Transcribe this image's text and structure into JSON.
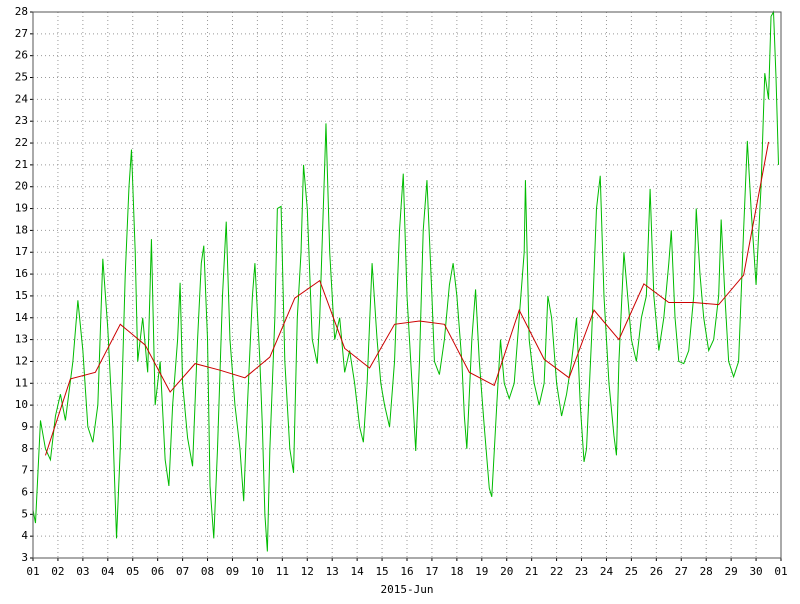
{
  "chart_data": {
    "type": "line",
    "xlabel": "2015-Jun",
    "grid": true,
    "xlim": [
      1,
      31
    ],
    "ylim": [
      3,
      28
    ],
    "xticks": [
      {
        "value": 1,
        "label": "01"
      },
      {
        "value": 2,
        "label": "02"
      },
      {
        "value": 3,
        "label": "03"
      },
      {
        "value": 4,
        "label": "04"
      },
      {
        "value": 5,
        "label": "05"
      },
      {
        "value": 6,
        "label": "06"
      },
      {
        "value": 7,
        "label": "07"
      },
      {
        "value": 8,
        "label": "08"
      },
      {
        "value": 9,
        "label": "09"
      },
      {
        "value": 10,
        "label": "10"
      },
      {
        "value": 11,
        "label": "11"
      },
      {
        "value": 12,
        "label": "12"
      },
      {
        "value": 13,
        "label": "13"
      },
      {
        "value": 14,
        "label": "14"
      },
      {
        "value": 15,
        "label": "15"
      },
      {
        "value": 16,
        "label": "16"
      },
      {
        "value": 17,
        "label": "17"
      },
      {
        "value": 18,
        "label": "18"
      },
      {
        "value": 19,
        "label": "19"
      },
      {
        "value": 20,
        "label": "20"
      },
      {
        "value": 21,
        "label": "21"
      },
      {
        "value": 22,
        "label": "22"
      },
      {
        "value": 23,
        "label": "23"
      },
      {
        "value": 24,
        "label": "24"
      },
      {
        "value": 25,
        "label": "25"
      },
      {
        "value": 26,
        "label": "26"
      },
      {
        "value": 27,
        "label": "27"
      },
      {
        "value": 28,
        "label": "28"
      },
      {
        "value": 29,
        "label": "29"
      },
      {
        "value": 30,
        "label": "30"
      },
      {
        "value": 31,
        "label": "01"
      }
    ],
    "yticks": [
      3,
      4,
      5,
      6,
      7,
      8,
      9,
      10,
      11,
      12,
      13,
      14,
      15,
      16,
      17,
      18,
      19,
      20,
      21,
      22,
      23,
      24,
      25,
      26,
      27,
      28
    ],
    "series": [
      {
        "color": "#00bb00",
        "x": [
          1.0,
          1.1,
          1.3,
          1.5,
          1.7,
          1.9,
          2.1,
          2.3,
          2.6,
          2.8,
          3.0,
          3.2,
          3.4,
          3.6,
          3.8,
          4.0,
          4.2,
          4.35,
          4.5,
          4.7,
          4.85,
          4.95,
          5.1,
          5.2,
          5.4,
          5.6,
          5.75,
          5.9,
          6.1,
          6.3,
          6.45,
          6.6,
          6.8,
          6.9,
          7.0,
          7.2,
          7.4,
          7.6,
          7.75,
          7.85,
          8.0,
          8.1,
          8.25,
          8.4,
          8.6,
          8.75,
          8.9,
          9.1,
          9.3,
          9.45,
          9.6,
          9.8,
          9.9,
          10.1,
          10.2,
          10.3,
          10.4,
          10.5,
          10.7,
          10.8,
          10.95,
          11.1,
          11.3,
          11.45,
          11.6,
          11.75,
          11.85,
          12.0,
          12.2,
          12.4,
          12.5,
          12.7,
          12.75,
          12.9,
          13.1,
          13.3,
          13.5,
          13.7,
          13.9,
          14.1,
          14.25,
          14.4,
          14.6,
          14.8,
          14.95,
          15.1,
          15.3,
          15.5,
          15.7,
          15.85,
          16.0,
          16.2,
          16.35,
          16.5,
          16.65,
          16.8,
          17.0,
          17.1,
          17.3,
          17.5,
          17.7,
          17.85,
          18.0,
          18.2,
          18.3,
          18.4,
          18.6,
          18.75,
          18.9,
          19.1,
          19.3,
          19.4,
          19.6,
          19.75,
          19.9,
          20.1,
          20.3,
          20.5,
          20.7,
          20.75,
          20.9,
          21.1,
          21.3,
          21.5,
          21.65,
          21.8,
          22.0,
          22.2,
          22.4,
          22.6,
          22.8,
          22.95,
          23.1,
          23.2,
          23.4,
          23.6,
          23.75,
          23.9,
          24.1,
          24.3,
          24.4,
          24.5,
          24.7,
          24.85,
          25.0,
          25.2,
          25.4,
          25.6,
          25.75,
          25.9,
          26.1,
          26.3,
          26.5,
          26.6,
          26.75,
          26.9,
          27.1,
          27.3,
          27.5,
          27.6,
          27.75,
          27.9,
          28.1,
          28.3,
          28.5,
          28.6,
          28.75,
          28.9,
          29.1,
          29.3,
          29.5,
          29.65,
          29.8,
          30.0,
          30.2,
          30.35,
          30.5,
          30.6,
          30.7,
          30.8,
          30.9
        ],
        "values": [
          5.2,
          4.6,
          9.3,
          8.0,
          7.5,
          9.5,
          10.5,
          9.3,
          12,
          14.8,
          12.5,
          9.0,
          8.3,
          10,
          16.7,
          13.5,
          9,
          3.9,
          8,
          16,
          20,
          21.7,
          17,
          12,
          14,
          11.5,
          17.6,
          10,
          12,
          7.5,
          6.3,
          10,
          13,
          15.6,
          11,
          8.5,
          7.2,
          13,
          16.5,
          17.3,
          13,
          6.3,
          3.9,
          8,
          15,
          18.4,
          13,
          10,
          8,
          5.6,
          10,
          15,
          16.5,
          12,
          9,
          5,
          3.3,
          8,
          14,
          19,
          19.1,
          12,
          8,
          6.9,
          14,
          17,
          21,
          19,
          13,
          11.9,
          14,
          21,
          22.9,
          17,
          13,
          14,
          11.5,
          12.5,
          11,
          9,
          8.3,
          11,
          16.5,
          13,
          11,
          10,
          9,
          12,
          18,
          20.6,
          15,
          11,
          7.9,
          12,
          18,
          20.3,
          15,
          12,
          11.4,
          13,
          15.5,
          16.5,
          15,
          12,
          9.5,
          8,
          13,
          15.3,
          12,
          9,
          6.2,
          5.8,
          10,
          13,
          11,
          10.3,
          11,
          14,
          17,
          20.3,
          13,
          11,
          10,
          11,
          15,
          14,
          11,
          9.5,
          10.5,
          12,
          14,
          10,
          7.4,
          8,
          13,
          19,
          20.5,
          15,
          11,
          8.6,
          7.7,
          12,
          17,
          15,
          13,
          12,
          14,
          15,
          19.9,
          15,
          12.5,
          14,
          16.5,
          18,
          14,
          12,
          11.9,
          12.5,
          15,
          19,
          16,
          14,
          12.5,
          13,
          15,
          18.5,
          15,
          12,
          11.3,
          12,
          18,
          22.1,
          19,
          15.5,
          20,
          25.2,
          24,
          27.8,
          28,
          25,
          21
        ]
      },
      {
        "color": "#cc0000",
        "x": [
          1.5,
          2.5,
          3.5,
          4.5,
          5.5,
          6.5,
          7.5,
          8.5,
          9.5,
          10.5,
          11.5,
          12.5,
          13.5,
          14.5,
          15.5,
          16.5,
          17.5,
          18.5,
          19.5,
          20.5,
          21.5,
          22.5,
          23.5,
          24.5,
          25.5,
          26.5,
          27.5,
          28.5,
          29.5,
          30.5
        ],
        "values": [
          7.7,
          11.2,
          11.5,
          13.7,
          12.75,
          10.6,
          11.9,
          11.6,
          11.25,
          12.2,
          14.9,
          15.7,
          12.6,
          11.7,
          13.7,
          13.85,
          13.7,
          11.5,
          10.9,
          14.35,
          12.1,
          11.25,
          14.35,
          13.0,
          15.55,
          14.7,
          14.7,
          14.6,
          15.95,
          22.05
        ]
      }
    ]
  }
}
